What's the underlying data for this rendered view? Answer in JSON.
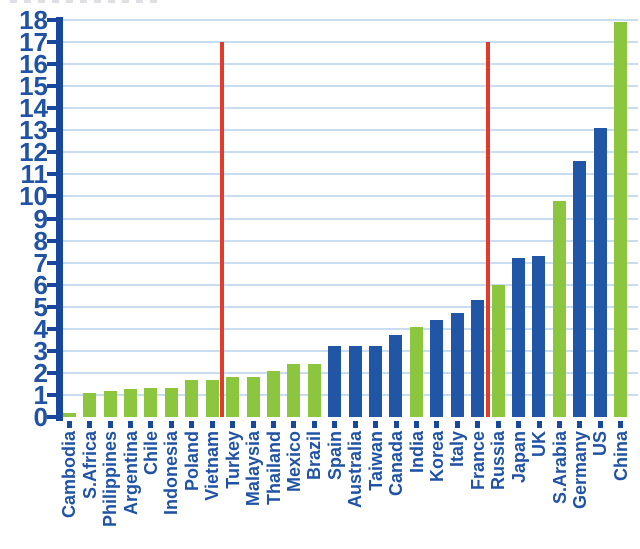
{
  "figure": {
    "background": "#ffffff"
  },
  "colors": {
    "bar_green": "#8CC63F",
    "bar_blue": "#2156A6",
    "axis": "#17489D",
    "tick_label": "#2053A5",
    "gridline": "#C9DCF0",
    "red_line": "#E23B2C"
  },
  "chart_data": {
    "type": "bar",
    "title": "",
    "xlabel": "",
    "ylabel": "",
    "ylim": [
      0,
      18
    ],
    "y_tick_step": 1,
    "grid": true,
    "legend_position": "none",
    "y_tick_labels": [
      "0",
      "1",
      "2",
      "3",
      "4",
      "5",
      "6",
      "7",
      "8",
      "9",
      "10",
      "11",
      "12",
      "13",
      "14",
      "15",
      "16",
      "17",
      "18"
    ],
    "categories": [
      "Cambodia",
      "S.Africa",
      "Philippines",
      "Argentina",
      "Chile",
      "Indonesia",
      "Poland",
      "Vietnam",
      "Turkey",
      "Malaysia",
      "Thailand",
      "Mexico",
      "Brazil",
      "Spain",
      "Australia",
      "Taiwan",
      "Canada",
      "India",
      "Korea",
      "Italy",
      "France",
      "Russia",
      "Japan",
      "UK",
      "S.Arabia",
      "Germany",
      "US",
      "China"
    ],
    "values": [
      0.2,
      1.1,
      1.2,
      1.25,
      1.3,
      1.3,
      1.7,
      1.7,
      1.8,
      1.8,
      2.1,
      2.4,
      2.4,
      3.2,
      3.2,
      3.2,
      3.7,
      4.1,
      4.4,
      4.7,
      5.3,
      6.0,
      7.2,
      7.3,
      9.8,
      11.6,
      13.1,
      17.9
    ],
    "bar_color_key": [
      "green",
      "green",
      "green",
      "green",
      "green",
      "green",
      "green",
      "green",
      "green",
      "green",
      "green",
      "green",
      "green",
      "blue",
      "blue",
      "blue",
      "blue",
      "green",
      "blue",
      "blue",
      "blue",
      "green",
      "blue",
      "blue",
      "green",
      "blue",
      "blue",
      "green"
    ],
    "reference_lines": [
      {
        "type": "vertical",
        "after_index": 7,
        "between_categories": [
          "Vietnam",
          "Turkey"
        ],
        "top_value": 17
      },
      {
        "type": "vertical",
        "after_index": 20,
        "between_categories": [
          "France",
          "Russia"
        ],
        "top_value": 17
      }
    ]
  }
}
